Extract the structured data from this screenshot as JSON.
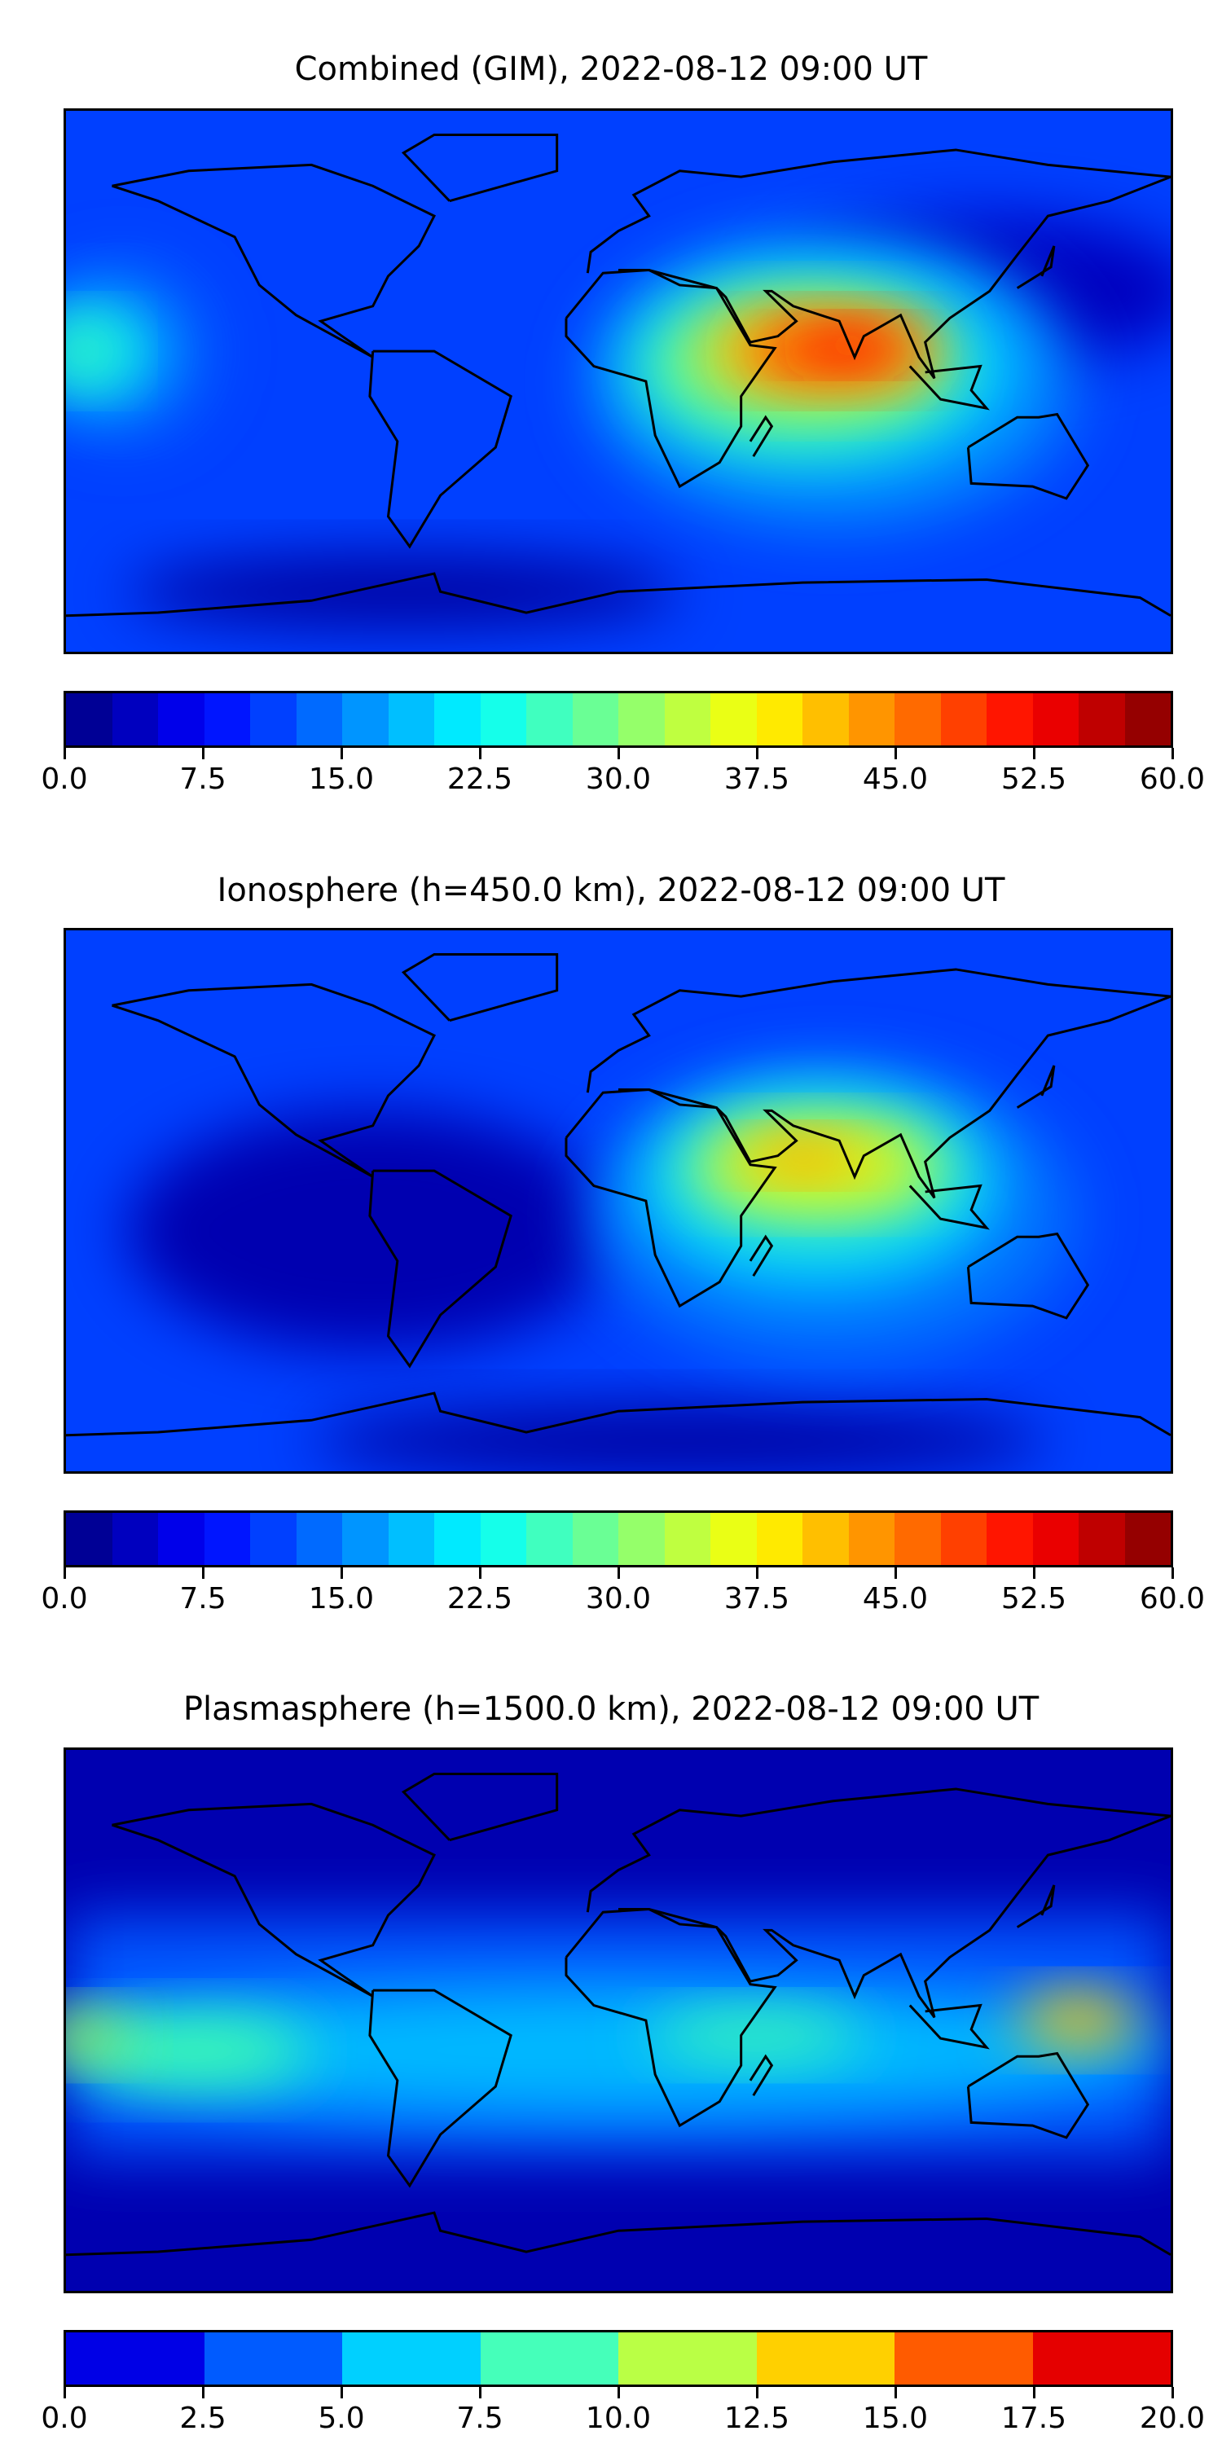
{
  "chart_data": [
    {
      "type": "heatmap",
      "title": "Combined (GIM), 2022-08-12 09:00 UT",
      "colormap": "jet",
      "levels": 24,
      "range": [
        0,
        60
      ],
      "ticks": [
        "0.0",
        "7.5",
        "15.0",
        "22.5",
        "30.0",
        "37.5",
        "45.0",
        "52.5",
        "60.0"
      ],
      "peak_region": "South Asia / Indian Ocean",
      "peak_value_approx": 52
    },
    {
      "type": "heatmap",
      "title": "Ionosphere  (h=450.0 km), 2022-08-12 09:00 UT",
      "colormap": "jet",
      "levels": 24,
      "range": [
        0,
        60
      ],
      "ticks": [
        "0.0",
        "7.5",
        "15.0",
        "22.5",
        "30.0",
        "37.5",
        "45.0",
        "52.5",
        "60.0"
      ],
      "peak_region": "Arabian Sea / South Asia",
      "peak_value_approx": 42
    },
    {
      "type": "heatmap",
      "title": "Plasmasphere (h=1500.0 km), 2022-08-12 09:00 UT",
      "colormap": "jet",
      "levels": 8,
      "range": [
        0,
        20
      ],
      "ticks": [
        "0.0",
        "2.5",
        "5.0",
        "7.5",
        "10.0",
        "12.5",
        "15.0",
        "17.5",
        "20.0"
      ],
      "peak_region": "Western Pacific",
      "peak_value_approx": 14
    }
  ]
}
